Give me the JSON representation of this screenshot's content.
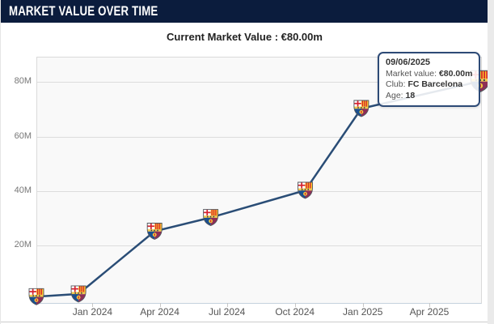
{
  "header": {
    "title": "MARKET VALUE OVER TIME"
  },
  "subtitle": {
    "text": "Current Market Value : €80.00m"
  },
  "tooltip": {
    "date": "09/06/2025",
    "market_value_label": "Market value:",
    "market_value": "€80.00m",
    "club_label": "Club:",
    "club": "FC Barcelona",
    "age_label": "Age:",
    "age": "18"
  },
  "chart_data": {
    "type": "line",
    "title": "",
    "xlabel": "",
    "ylabel": "",
    "legend": "none",
    "grid": "horizontal-only",
    "marker_icon": "fcb-crest-icon",
    "line_color": "#2a4d76",
    "plot_bg": "#f9f9f9",
    "x_range": {
      "min": "17/10/2023",
      "max": "09/06/2025"
    },
    "ylim": [
      -1,
      89
    ],
    "yticks": [
      {
        "value": 20,
        "label": "20M"
      },
      {
        "value": 40,
        "label": "40M"
      },
      {
        "value": 60,
        "label": "60M"
      },
      {
        "value": 80,
        "label": "80M"
      }
    ],
    "xticks": [
      {
        "date": "01/01/2024",
        "label": "Jan 2024"
      },
      {
        "date": "01/04/2024",
        "label": "Apr 2024"
      },
      {
        "date": "01/07/2024",
        "label": "Jul 2024"
      },
      {
        "date": "01/10/2024",
        "label": "Oct 2024"
      },
      {
        "date": "01/01/2025",
        "label": "Jan 2025"
      },
      {
        "date": "01/04/2025",
        "label": "Apr 2025"
      }
    ],
    "series": [
      {
        "name": "Market value (€m)",
        "club": "FC Barcelona",
        "points": [
          {
            "date": "17/10/2023",
            "value_m": 1
          },
          {
            "date": "13/12/2023",
            "value_m": 2
          },
          {
            "date": "25/03/2024",
            "value_m": 25
          },
          {
            "date": "09/06/2024",
            "value_m": 30
          },
          {
            "date": "15/10/2024",
            "value_m": 40
          },
          {
            "date": "30/12/2024",
            "value_m": 70
          },
          {
            "date": "09/06/2025",
            "value_m": 80
          }
        ]
      }
    ]
  },
  "colors": {
    "header_bg": "#0b1c3d",
    "line": "#2a4d76",
    "tooltip_border": "#2d4a76",
    "grid": "#dddddd",
    "crest_blue": "#1a4f8f",
    "crest_grana": "#8e2e56",
    "crest_gold": "#f2c94c",
    "crest_red": "#d5212e"
  }
}
